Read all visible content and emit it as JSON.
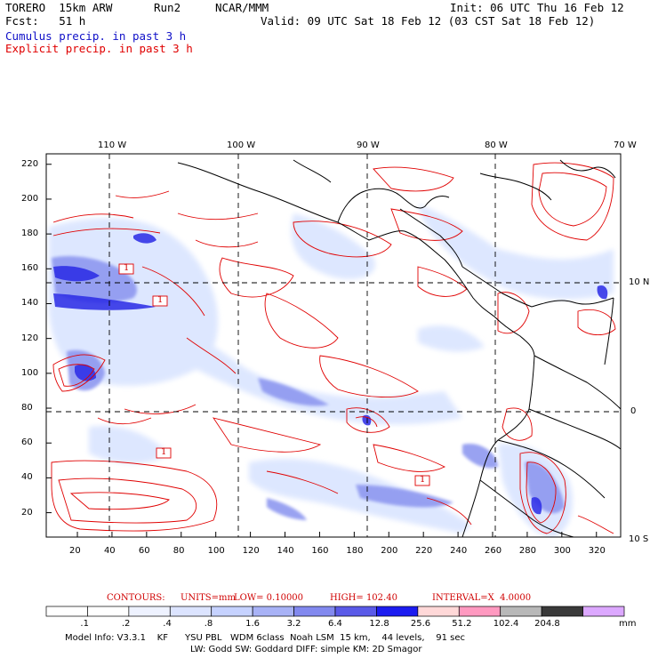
{
  "header": {
    "model": "TORERO  15km ARW",
    "run": "Run2",
    "org": "NCAR/MMM",
    "init": "Init: 06 UTC Thu 16 Feb 12",
    "fcst": "Fcst:   51 h",
    "valid": "Valid: 09 UTC Sat 18 Feb 12 (03 CST Sat 18 Feb 12)",
    "line_cumulus": "Cumulus precip. in past 3 h",
    "line_explicit": "Explicit precip. in past 3 h"
  },
  "map": {
    "top_lon_labels": [
      "110 W",
      "100 W",
      "90 W",
      "80 W",
      "70 W"
    ],
    "right_lat_labels": [
      "10 N",
      "0",
      "10 S"
    ],
    "y_ticks": [
      "220",
      "200",
      "180",
      "160",
      "140",
      "120",
      "100",
      "80",
      "60",
      "40",
      "20"
    ],
    "x_ticks": [
      "20",
      "40",
      "60",
      "80",
      "100",
      "120",
      "140",
      "160",
      "180",
      "200",
      "220",
      "240",
      "260",
      "280",
      "300",
      "320"
    ],
    "contour_labels": [
      "1",
      "1",
      "1",
      "1"
    ],
    "colors": {
      "contour": "#e00000",
      "coast": "#000000",
      "grid": "#000000",
      "precip_light": "#dce6ff",
      "precip_mid": "#8f96ee",
      "precip_heavy": "#2a2ae6"
    }
  },
  "contours_line": {
    "label": "CONTOURS:",
    "units": "UNITS=mm",
    "low": "LOW= 0.10000",
    "high": "HIGH= 102.40",
    "interval": "INTERVAL=X  4.0000"
  },
  "colorbar": {
    "labels": [
      ".1",
      ".2",
      ".4",
      ".8",
      "1.6",
      "3.2",
      "6.4",
      "12.8",
      "25.6",
      "51.2",
      "102.4",
      "204.8"
    ],
    "unit": "mm",
    "colors": [
      "#ffffff",
      "#ffffff",
      "#eef2ff",
      "#dce4ff",
      "#c6d2ff",
      "#a8b2f6",
      "#8289ef",
      "#5a5ae8",
      "#1c1cf0",
      "#ffd8d8",
      "#ff99c0",
      "#b8b8b8",
      "#3a3a3a",
      "#dca8ff"
    ]
  },
  "footer": {
    "line1": "Model Info: V3.3.1    KF      YSU PBL   WDM 6class  Noah LSM  15 km,    44 levels,    91 sec",
    "line2": "LW: Godd SW: Goddard DIFF: simple KM: 2D Smagor"
  }
}
